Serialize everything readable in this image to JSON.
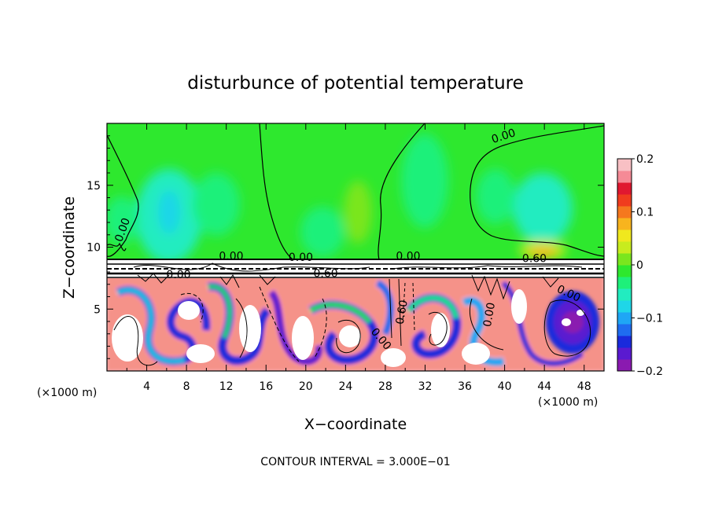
{
  "chart_data": {
    "type": "heatmap",
    "title": "disturbunce of potential temperature",
    "xlabel": "X−coordinate",
    "ylabel": "Z−coordinate",
    "x_unit_left": "(×1000 m)",
    "x_unit_right": "(×1000 m)",
    "xlim": [
      0,
      50
    ],
    "ylim": [
      0,
      20
    ],
    "xticks": [
      4,
      8,
      12,
      16,
      20,
      24,
      28,
      32,
      36,
      40,
      44,
      48
    ],
    "xtick_labels": [
      "4",
      "8",
      "12",
      "16",
      "20",
      "24",
      "28",
      "32",
      "36",
      "40",
      "44",
      "48"
    ],
    "yticks": [
      5,
      10,
      15
    ],
    "ytick_labels": [
      "5",
      "10",
      "15"
    ],
    "colorbar": {
      "range": [
        -0.2,
        0.2
      ],
      "ticks": [
        0.2,
        0.1,
        0,
        -0.1,
        -0.2
      ],
      "tick_labels": [
        "0.2",
        "0.1",
        "0",
        "−0.1",
        "−0.2"
      ],
      "colors": [
        "#8a1ab0",
        "#5a1ad0",
        "#1a2adc",
        "#1f6cf0",
        "#1fa6f5",
        "#1fd6e8",
        "#22ecc0",
        "#1ef07a",
        "#2ee82e",
        "#7ae61e",
        "#c8ec1e",
        "#f0e81e",
        "#f8b41e",
        "#f5781e",
        "#f03c1e",
        "#e01830",
        "#f58a96",
        "#f8c0c4"
      ]
    },
    "contour_labels": [
      {
        "text": "0.00",
        "x": 40.0,
        "z": 18.7,
        "rotate": -18
      },
      {
        "text": "0.00",
        "x": 1.9,
        "z": 11.3,
        "rotate": -70
      },
      {
        "text": "0.00",
        "x": 12.5,
        "z": 9.0,
        "rotate": 0
      },
      {
        "text": "0.00",
        "x": 19.5,
        "z": 8.9,
        "rotate": 0
      },
      {
        "text": "0.00",
        "x": 30.3,
        "z": 9.0,
        "rotate": 0
      },
      {
        "text": "0.60",
        "x": 43.0,
        "z": 8.8,
        "rotate": 0
      },
      {
        "text": "0.00",
        "x": 7.2,
        "z": 7.5,
        "rotate": 0
      },
      {
        "text": "0.60",
        "x": 22.0,
        "z": 7.6,
        "rotate": 0
      },
      {
        "text": "0.60",
        "x": 30.0,
        "z": 4.7,
        "rotate": -80
      },
      {
        "text": "0.00",
        "x": 27.3,
        "z": 2.4,
        "rotate": 50
      },
      {
        "text": "0.00",
        "x": 38.8,
        "z": 4.5,
        "rotate": -80
      },
      {
        "text": "0.00",
        "x": 46.3,
        "z": 6.0,
        "rotate": 25
      }
    ],
    "annotation": "CONTOUR INTERVAL = 3.000E−01"
  }
}
